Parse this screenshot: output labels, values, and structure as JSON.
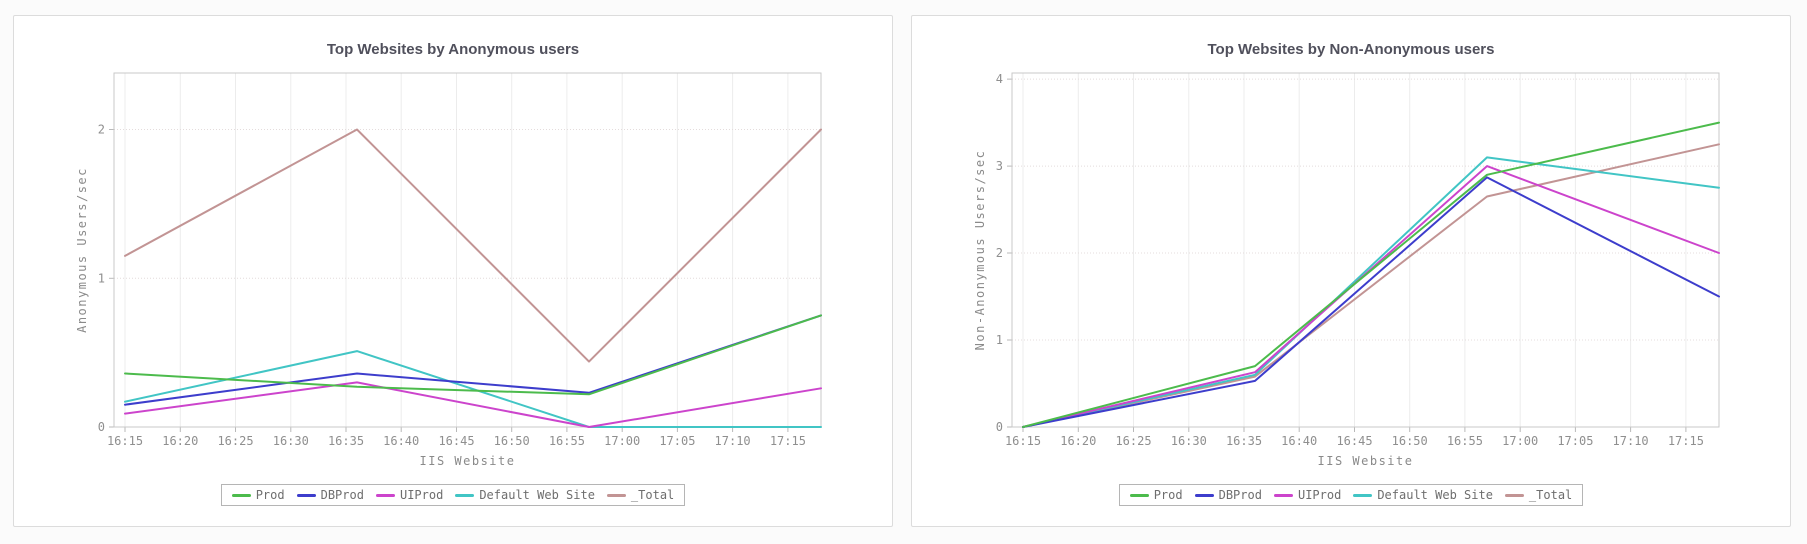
{
  "chart_data": [
    {
      "type": "line",
      "title": "Top Websites by Anonymous users",
      "xlabel": "IIS Website",
      "ylabel": "Anonymous Users/sec",
      "x_tick_labels": [
        "16:15",
        "16:20",
        "16:25",
        "16:30",
        "16:35",
        "16:40",
        "16:45",
        "16:50",
        "16:55",
        "17:00",
        "17:05",
        "17:10",
        "17:15"
      ],
      "x_tick_minutes": [
        975,
        980,
        985,
        990,
        995,
        1000,
        1005,
        1010,
        1015,
        1020,
        1025,
        1030,
        1035
      ],
      "x_domain_minutes": [
        974,
        1038
      ],
      "x_point_times": [
        "16:15",
        "16:36",
        "16:57",
        "17:18"
      ],
      "x_point_minutes": [
        975,
        996,
        1017,
        1038
      ],
      "ylim": [
        0,
        2.38
      ],
      "y_ticks": [
        0,
        1,
        2
      ],
      "grid": true,
      "legend_position": "bottom",
      "series": [
        {
          "name": "Prod",
          "color": "#4cbb4c",
          "values": [
            0.36,
            0.27,
            0.22,
            0.75
          ]
        },
        {
          "name": "DBProd",
          "color": "#3d3dcc",
          "values": [
            0.15,
            0.36,
            0.23,
            0.75
          ]
        },
        {
          "name": "UIProd",
          "color": "#cc44cc",
          "values": [
            0.09,
            0.3,
            0.0,
            0.26
          ]
        },
        {
          "name": "Default Web Site",
          "color": "#41c5c5",
          "values": [
            0.17,
            0.51,
            0.0,
            0.0
          ]
        },
        {
          "name": "_Total",
          "color": "#c29494",
          "values": [
            1.15,
            2.0,
            0.44,
            2.0
          ]
        }
      ]
    },
    {
      "type": "line",
      "title": "Top Websites by Non-Anonymous users",
      "xlabel": "IIS Website",
      "ylabel": "Non-Anonymous Users/sec",
      "x_tick_labels": [
        "16:15",
        "16:20",
        "16:25",
        "16:30",
        "16:35",
        "16:40",
        "16:45",
        "16:50",
        "16:55",
        "17:00",
        "17:05",
        "17:10",
        "17:15"
      ],
      "x_tick_minutes": [
        975,
        980,
        985,
        990,
        995,
        1000,
        1005,
        1010,
        1015,
        1020,
        1025,
        1030,
        1035
      ],
      "x_domain_minutes": [
        974,
        1038
      ],
      "x_point_times": [
        "16:15",
        "16:36",
        "16:57",
        "17:18"
      ],
      "x_point_minutes": [
        975,
        996,
        1017,
        1038
      ],
      "ylim": [
        0,
        4.07
      ],
      "y_ticks": [
        0,
        1,
        2,
        3,
        4
      ],
      "grid": true,
      "legend_position": "bottom",
      "series": [
        {
          "name": "Prod",
          "color": "#4cbb4c",
          "values": [
            0.0,
            0.7,
            2.9,
            3.5
          ]
        },
        {
          "name": "DBProd",
          "color": "#3d3dcc",
          "values": [
            0.0,
            0.53,
            2.87,
            1.5
          ]
        },
        {
          "name": "UIProd",
          "color": "#cc44cc",
          "values": [
            0.0,
            0.63,
            3.0,
            2.0
          ]
        },
        {
          "name": "Default Web Site",
          "color": "#41c5c5",
          "values": [
            0.0,
            0.6,
            3.1,
            2.75
          ]
        },
        {
          "name": "_Total",
          "color": "#c29494",
          "values": [
            0.0,
            0.58,
            2.65,
            3.25
          ]
        }
      ]
    }
  ]
}
